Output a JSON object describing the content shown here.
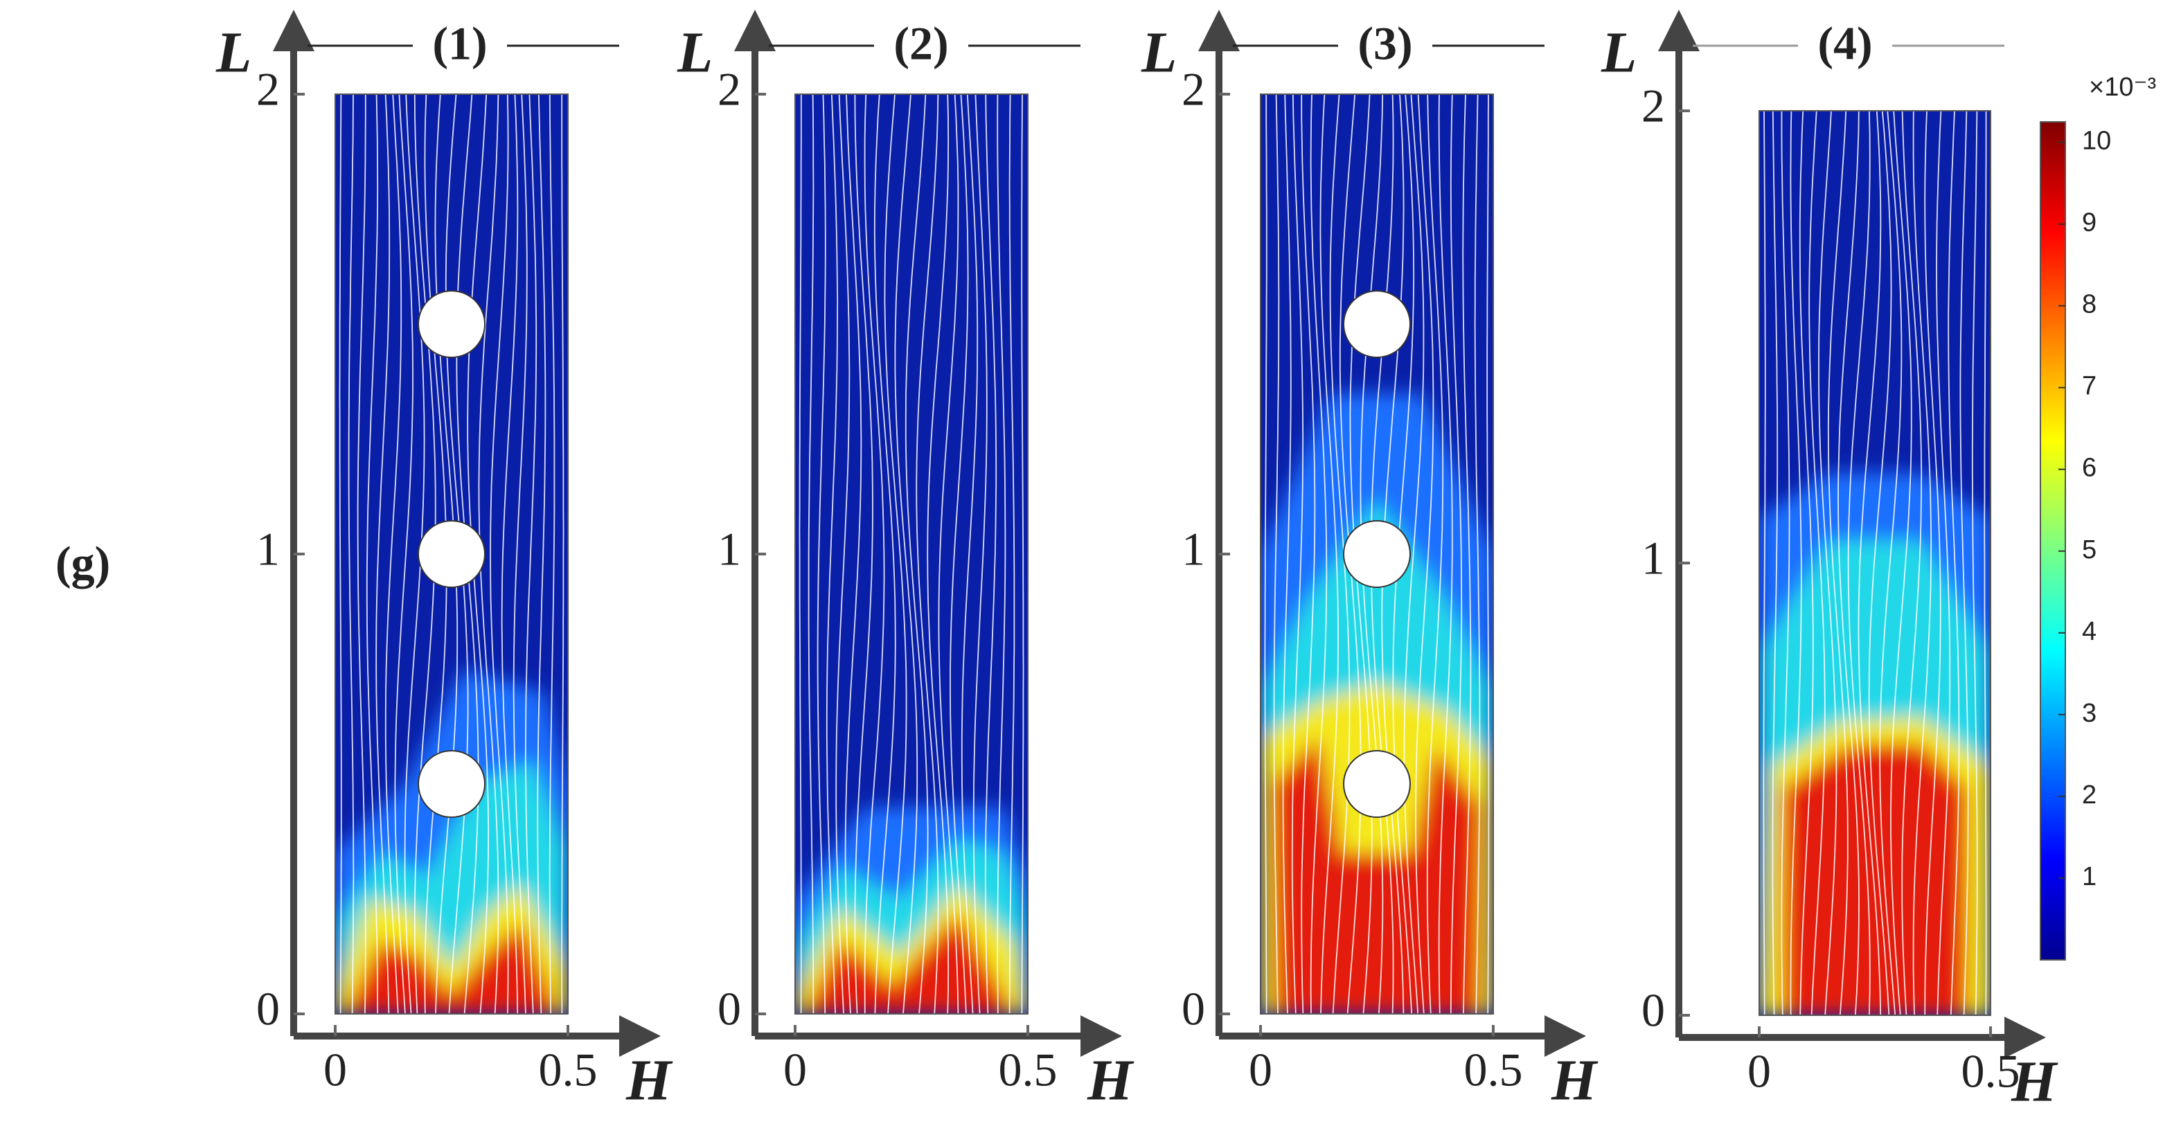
{
  "figure_label": "(g)",
  "chart_data": [
    {
      "type": "contour",
      "title": "(1)",
      "xlabel": "H",
      "ylabel": "L",
      "xlim": [
        0,
        0.5
      ],
      "ylim": [
        0,
        2
      ],
      "xticks": [
        0,
        0.5
      ],
      "yticks": [
        0,
        1,
        2
      ]
    },
    {
      "type": "contour",
      "title": "(2)",
      "xlabel": "H",
      "ylabel": "L",
      "xlim": [
        0,
        0.5
      ],
      "ylim": [
        0,
        2
      ],
      "xticks": [
        0,
        0.5
      ],
      "yticks": [
        0,
        1,
        2
      ]
    },
    {
      "type": "contour",
      "title": "(3)",
      "xlabel": "H",
      "ylabel": "L",
      "xlim": [
        0,
        0.5
      ],
      "ylim": [
        0,
        2
      ],
      "xticks": [
        0,
        0.5
      ],
      "yticks": [
        0,
        1,
        2
      ]
    },
    {
      "type": "contour",
      "title": "(4)",
      "xlabel": "H",
      "ylabel": "L",
      "xlim": [
        0,
        0.5
      ],
      "ylim": [
        0,
        2
      ],
      "xticks": [
        0,
        0.5
      ],
      "yticks": [
        0,
        1,
        2
      ]
    }
  ],
  "colorbar": {
    "label": "×10⁻³",
    "zlim": [
      0,
      10.25
    ],
    "ticks": [
      1,
      2,
      3,
      4,
      5,
      6,
      7,
      8,
      9,
      10
    ]
  }
}
